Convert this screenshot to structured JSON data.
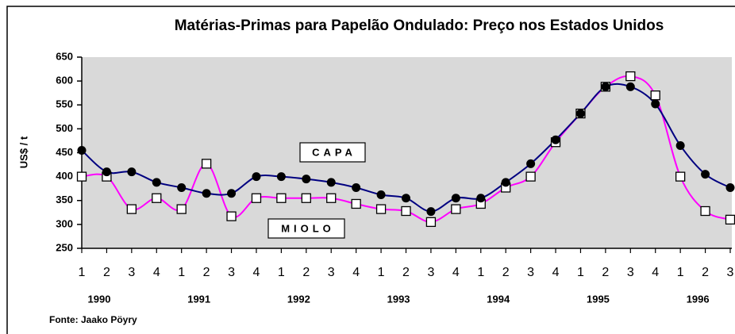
{
  "chart_data": {
    "type": "line",
    "title": "Matérias-Primas para Papelão Ondulado: Preço nos Estados Unidos",
    "y_label": "US$ / t",
    "source": "Fonte: Jaako Pöyry",
    "categories": [
      "1",
      "2",
      "3",
      "4",
      "1",
      "2",
      "3",
      "4",
      "1",
      "2",
      "3",
      "4",
      "1",
      "2",
      "3",
      "4",
      "1",
      "2",
      "3",
      "4",
      "1",
      "2",
      "3",
      "4",
      "1",
      "2",
      "3"
    ],
    "years": [
      "1990",
      "1991",
      "1992",
      "1993",
      "1994",
      "1995",
      "1996"
    ],
    "series": [
      {
        "name": "CAPA",
        "color": "#000080",
        "marker": "circle",
        "values": [
          455,
          410,
          410,
          388,
          377,
          365,
          365,
          400,
          400,
          395,
          388,
          377,
          362,
          355,
          327,
          355,
          355,
          388,
          427,
          477,
          532,
          588,
          588,
          552,
          465,
          405,
          377
        ]
      },
      {
        "name": "MIOLO",
        "color": "#ff00ff",
        "marker": "square",
        "values": [
          400,
          400,
          332,
          355,
          332,
          427,
          317,
          355,
          355,
          355,
          355,
          343,
          332,
          328,
          305,
          332,
          343,
          377,
          400,
          472,
          532,
          588,
          610,
          570,
          400,
          328,
          310
        ]
      }
    ],
    "ylim": [
      250,
      650
    ],
    "yticks": [
      250,
      300,
      350,
      400,
      450,
      500,
      550,
      600,
      650
    ],
    "plot_background": "#d9d9d9"
  }
}
